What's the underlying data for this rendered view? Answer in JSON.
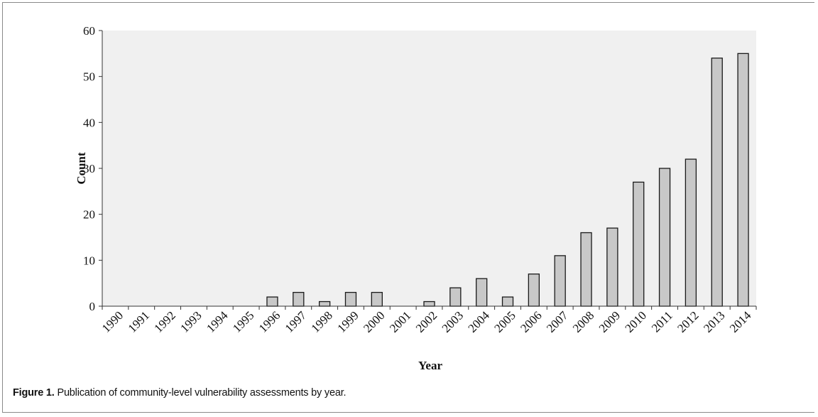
{
  "chart_data": {
    "type": "bar",
    "categories": [
      "1990",
      "1991",
      "1992",
      "1993",
      "1994",
      "1995",
      "1996",
      "1997",
      "1998",
      "1999",
      "2000",
      "2001",
      "2002",
      "2003",
      "2004",
      "2005",
      "2006",
      "2007",
      "2008",
      "2009",
      "2010",
      "2011",
      "2012",
      "2013",
      "2014"
    ],
    "values": [
      0,
      0,
      0,
      0,
      0,
      0,
      2,
      3,
      1,
      3,
      3,
      0,
      1,
      4,
      6,
      2,
      7,
      11,
      16,
      17,
      27,
      30,
      32,
      54,
      55
    ],
    "xlabel": "Year",
    "ylabel": "Count",
    "ylim": [
      0,
      60
    ],
    "yticks": [
      0,
      10,
      20,
      30,
      40,
      50,
      60
    ],
    "grid": false,
    "colors": {
      "bar_fill": "#c8c8c8",
      "bar_stroke": "#1a1a1a",
      "plot_bg": "#f0f0f0"
    }
  },
  "caption": {
    "label": "Figure 1.",
    "text": " Publication of community-level vulnerability assessments by year."
  }
}
